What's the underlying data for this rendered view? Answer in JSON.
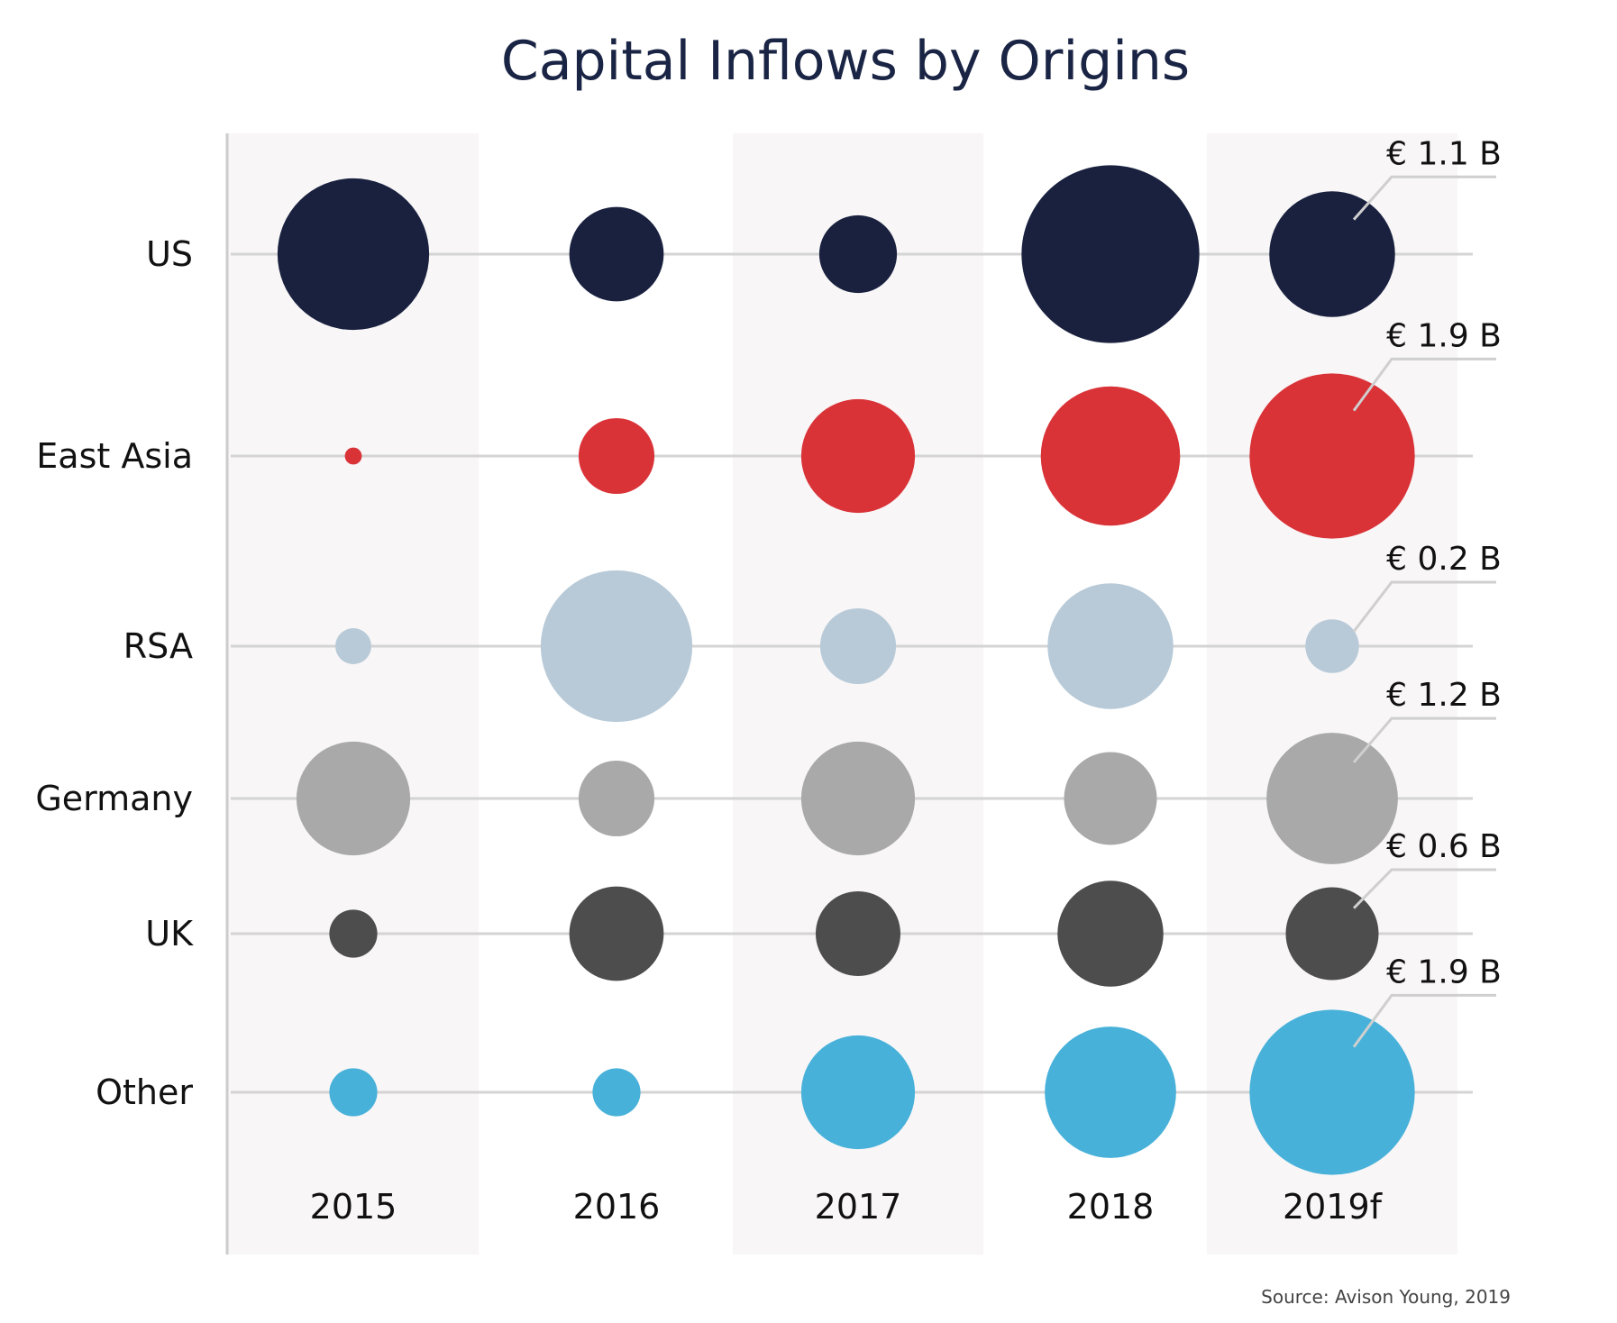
{
  "chart_data": {
    "type": "bubble-grid",
    "title": "Capital Inflows by Origins",
    "source": "Source: Avison Young, 2019",
    "categories": [
      "2015",
      "2016",
      "2017",
      "2018",
      "2019f"
    ],
    "series": [
      {
        "name": "US",
        "color": "#19213f",
        "values": [
          1.6,
          0.62,
          0.42,
          2.2,
          1.1
        ],
        "label": "€ 1.1 B"
      },
      {
        "name": "East Asia",
        "color": "#d93338",
        "values": [
          0.02,
          0.4,
          0.9,
          1.35,
          1.9
        ],
        "label": "€ 1.9 B"
      },
      {
        "name": "RSA",
        "color": "#b8cad8",
        "values": [
          0.09,
          1.6,
          0.4,
          1.1,
          0.2
        ],
        "label": "€ 0.2 B"
      },
      {
        "name": "Germany",
        "color": "#a9a9a9",
        "values": [
          0.9,
          0.4,
          0.9,
          0.6,
          1.2
        ],
        "label": "€ 1.2 B"
      },
      {
        "name": "UK",
        "color": "#4d4d4d",
        "values": [
          0.16,
          0.62,
          0.5,
          0.78,
          0.6
        ],
        "label": "€ 0.6 B"
      },
      {
        "name": "Other",
        "color": "#48b1d9",
        "values": [
          0.16,
          0.16,
          0.9,
          1.2,
          1.9
        ],
        "label": "€ 1.9 B"
      }
    ],
    "unit": "€ B",
    "colors": {
      "band": "#f8f6f7",
      "gridline": "#d4d4d4",
      "axis": "#cccccc",
      "title": "#1a2444"
    }
  }
}
